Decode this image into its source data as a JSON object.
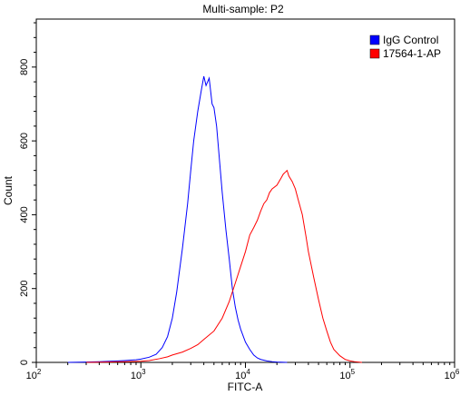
{
  "chart_data": {
    "type": "line",
    "title": "Multi-sample: P2",
    "xlabel": "FITC-A",
    "ylabel": "Count",
    "xscale": "log",
    "xlim": [
      100,
      1000000
    ],
    "ylim": [
      0,
      930
    ],
    "x_ticks": [
      {
        "base": "10",
        "exp": "2",
        "value": 100
      },
      {
        "base": "10",
        "exp": "3",
        "value": 1000
      },
      {
        "base": "10",
        "exp": "4",
        "value": 10000
      },
      {
        "base": "10",
        "exp": "5",
        "value": 100000
      },
      {
        "base": "10",
        "exp": "6",
        "value": 1000000
      }
    ],
    "y_ticks": [
      "0",
      "200",
      "400",
      "600",
      "800"
    ],
    "y_tick_values": [
      0,
      200,
      400,
      600,
      800
    ],
    "legend_position": "top-right",
    "grid": false,
    "series": [
      {
        "name": "IgG Control",
        "color": "#0000ff",
        "x": [
          200,
          300,
          400,
          500,
          600,
          700,
          800,
          900,
          1000,
          1200,
          1400,
          1600,
          1800,
          2000,
          2200,
          2500,
          2800,
          3000,
          3200,
          3500,
          3800,
          4000,
          4200,
          4500,
          4800,
          5000,
          5300,
          5600,
          6000,
          6500,
          7000,
          7500,
          8000,
          8500,
          9000,
          10000,
          11000,
          12000,
          13000,
          14000,
          16000,
          18000,
          20000,
          25000
        ],
        "y": [
          0,
          1,
          2,
          3,
          4,
          5,
          6,
          7,
          9,
          14,
          22,
          40,
          70,
          120,
          190,
          310,
          430,
          520,
          600,
          680,
          740,
          775,
          750,
          770,
          700,
          690,
          640,
          560,
          460,
          360,
          280,
          200,
          150,
          115,
          90,
          55,
          35,
          20,
          12,
          8,
          4,
          2,
          1,
          0
        ]
      },
      {
        "name": "17564-1-AP",
        "color": "#ff0000",
        "x": [
          300,
          500,
          700,
          1000,
          1200,
          1500,
          1800,
          2000,
          2500,
          3000,
          3500,
          4000,
          5000,
          6000,
          7000,
          8000,
          9000,
          10000,
          11000,
          12000,
          13000,
          14000,
          15000,
          16000,
          17000,
          18000,
          20000,
          22000,
          23000,
          24000,
          25000,
          26000,
          28000,
          30000,
          32000,
          35000,
          38000,
          40000,
          45000,
          50000,
          55000,
          60000,
          65000,
          70000,
          80000,
          90000,
          100000,
          110000,
          130000
        ],
        "y": [
          0,
          1,
          2,
          3,
          5,
          10,
          15,
          20,
          28,
          38,
          48,
          62,
          85,
          120,
          165,
          215,
          260,
          300,
          345,
          365,
          385,
          410,
          430,
          440,
          460,
          470,
          480,
          500,
          510,
          515,
          520,
          505,
          490,
          470,
          440,
          400,
          340,
          300,
          230,
          170,
          120,
          85,
          55,
          35,
          18,
          8,
          4,
          2,
          0
        ]
      }
    ]
  }
}
